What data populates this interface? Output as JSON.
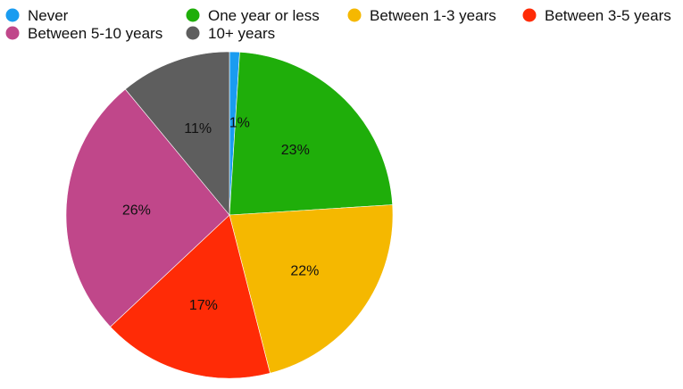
{
  "chart_data": {
    "type": "pie",
    "title": "",
    "legend_position": "top",
    "slices": [
      {
        "label": "Never",
        "value": 1,
        "display": "1%",
        "color": "#1a9cf0"
      },
      {
        "label": "One year or less",
        "value": 23,
        "display": "23%",
        "color": "#1fae0a"
      },
      {
        "label": "Between 1-3 years",
        "value": 22,
        "display": "22%",
        "color": "#f5b800"
      },
      {
        "label": "Between 3-5 years",
        "value": 17,
        "display": "17%",
        "color": "#ff2b06"
      },
      {
        "label": "Between 5-10 years",
        "value": 26,
        "display": "26%",
        "color": "#c0478a"
      },
      {
        "label": "10+ years",
        "value": 11,
        "display": "11%",
        "color": "#5e5e5e"
      }
    ]
  }
}
